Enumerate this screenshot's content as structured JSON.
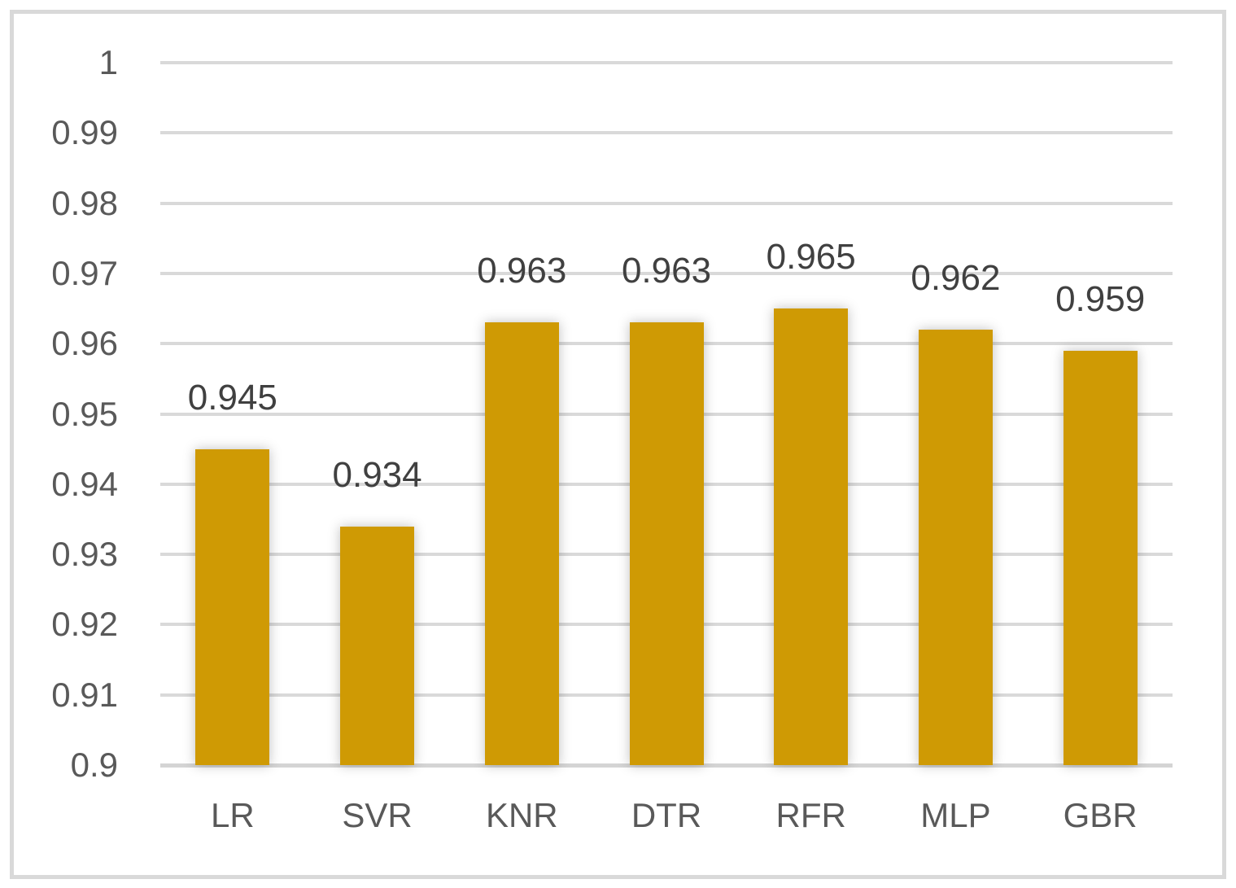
{
  "chart_data": {
    "type": "bar",
    "title": "",
    "xlabel": "",
    "ylabel": "",
    "categories": [
      "LR",
      "SVR",
      "KNR",
      "DTR",
      "RFR",
      "MLP",
      "GBR"
    ],
    "values": [
      0.945,
      0.934,
      0.963,
      0.963,
      0.965,
      0.962,
      0.959
    ],
    "data_labels": [
      "0.945",
      "0.934",
      "0.963",
      "0.963",
      "0.965",
      "0.962",
      "0.959"
    ],
    "ylim": [
      0.9,
      1.0
    ],
    "ytick_step": 0.01,
    "ytick_labels": [
      "0.9",
      "0.91",
      "0.92",
      "0.93",
      "0.94",
      "0.95",
      "0.96",
      "0.97",
      "0.98",
      "0.99",
      "1"
    ],
    "grid": true,
    "legend": "none",
    "colors": {
      "bar": "#CF9A04",
      "axis_text": "#595959",
      "data_label_text": "#404040",
      "gridline": "#D9D9D9",
      "frame_border": "#D9D9D9",
      "background": "#FFFFFF"
    }
  }
}
